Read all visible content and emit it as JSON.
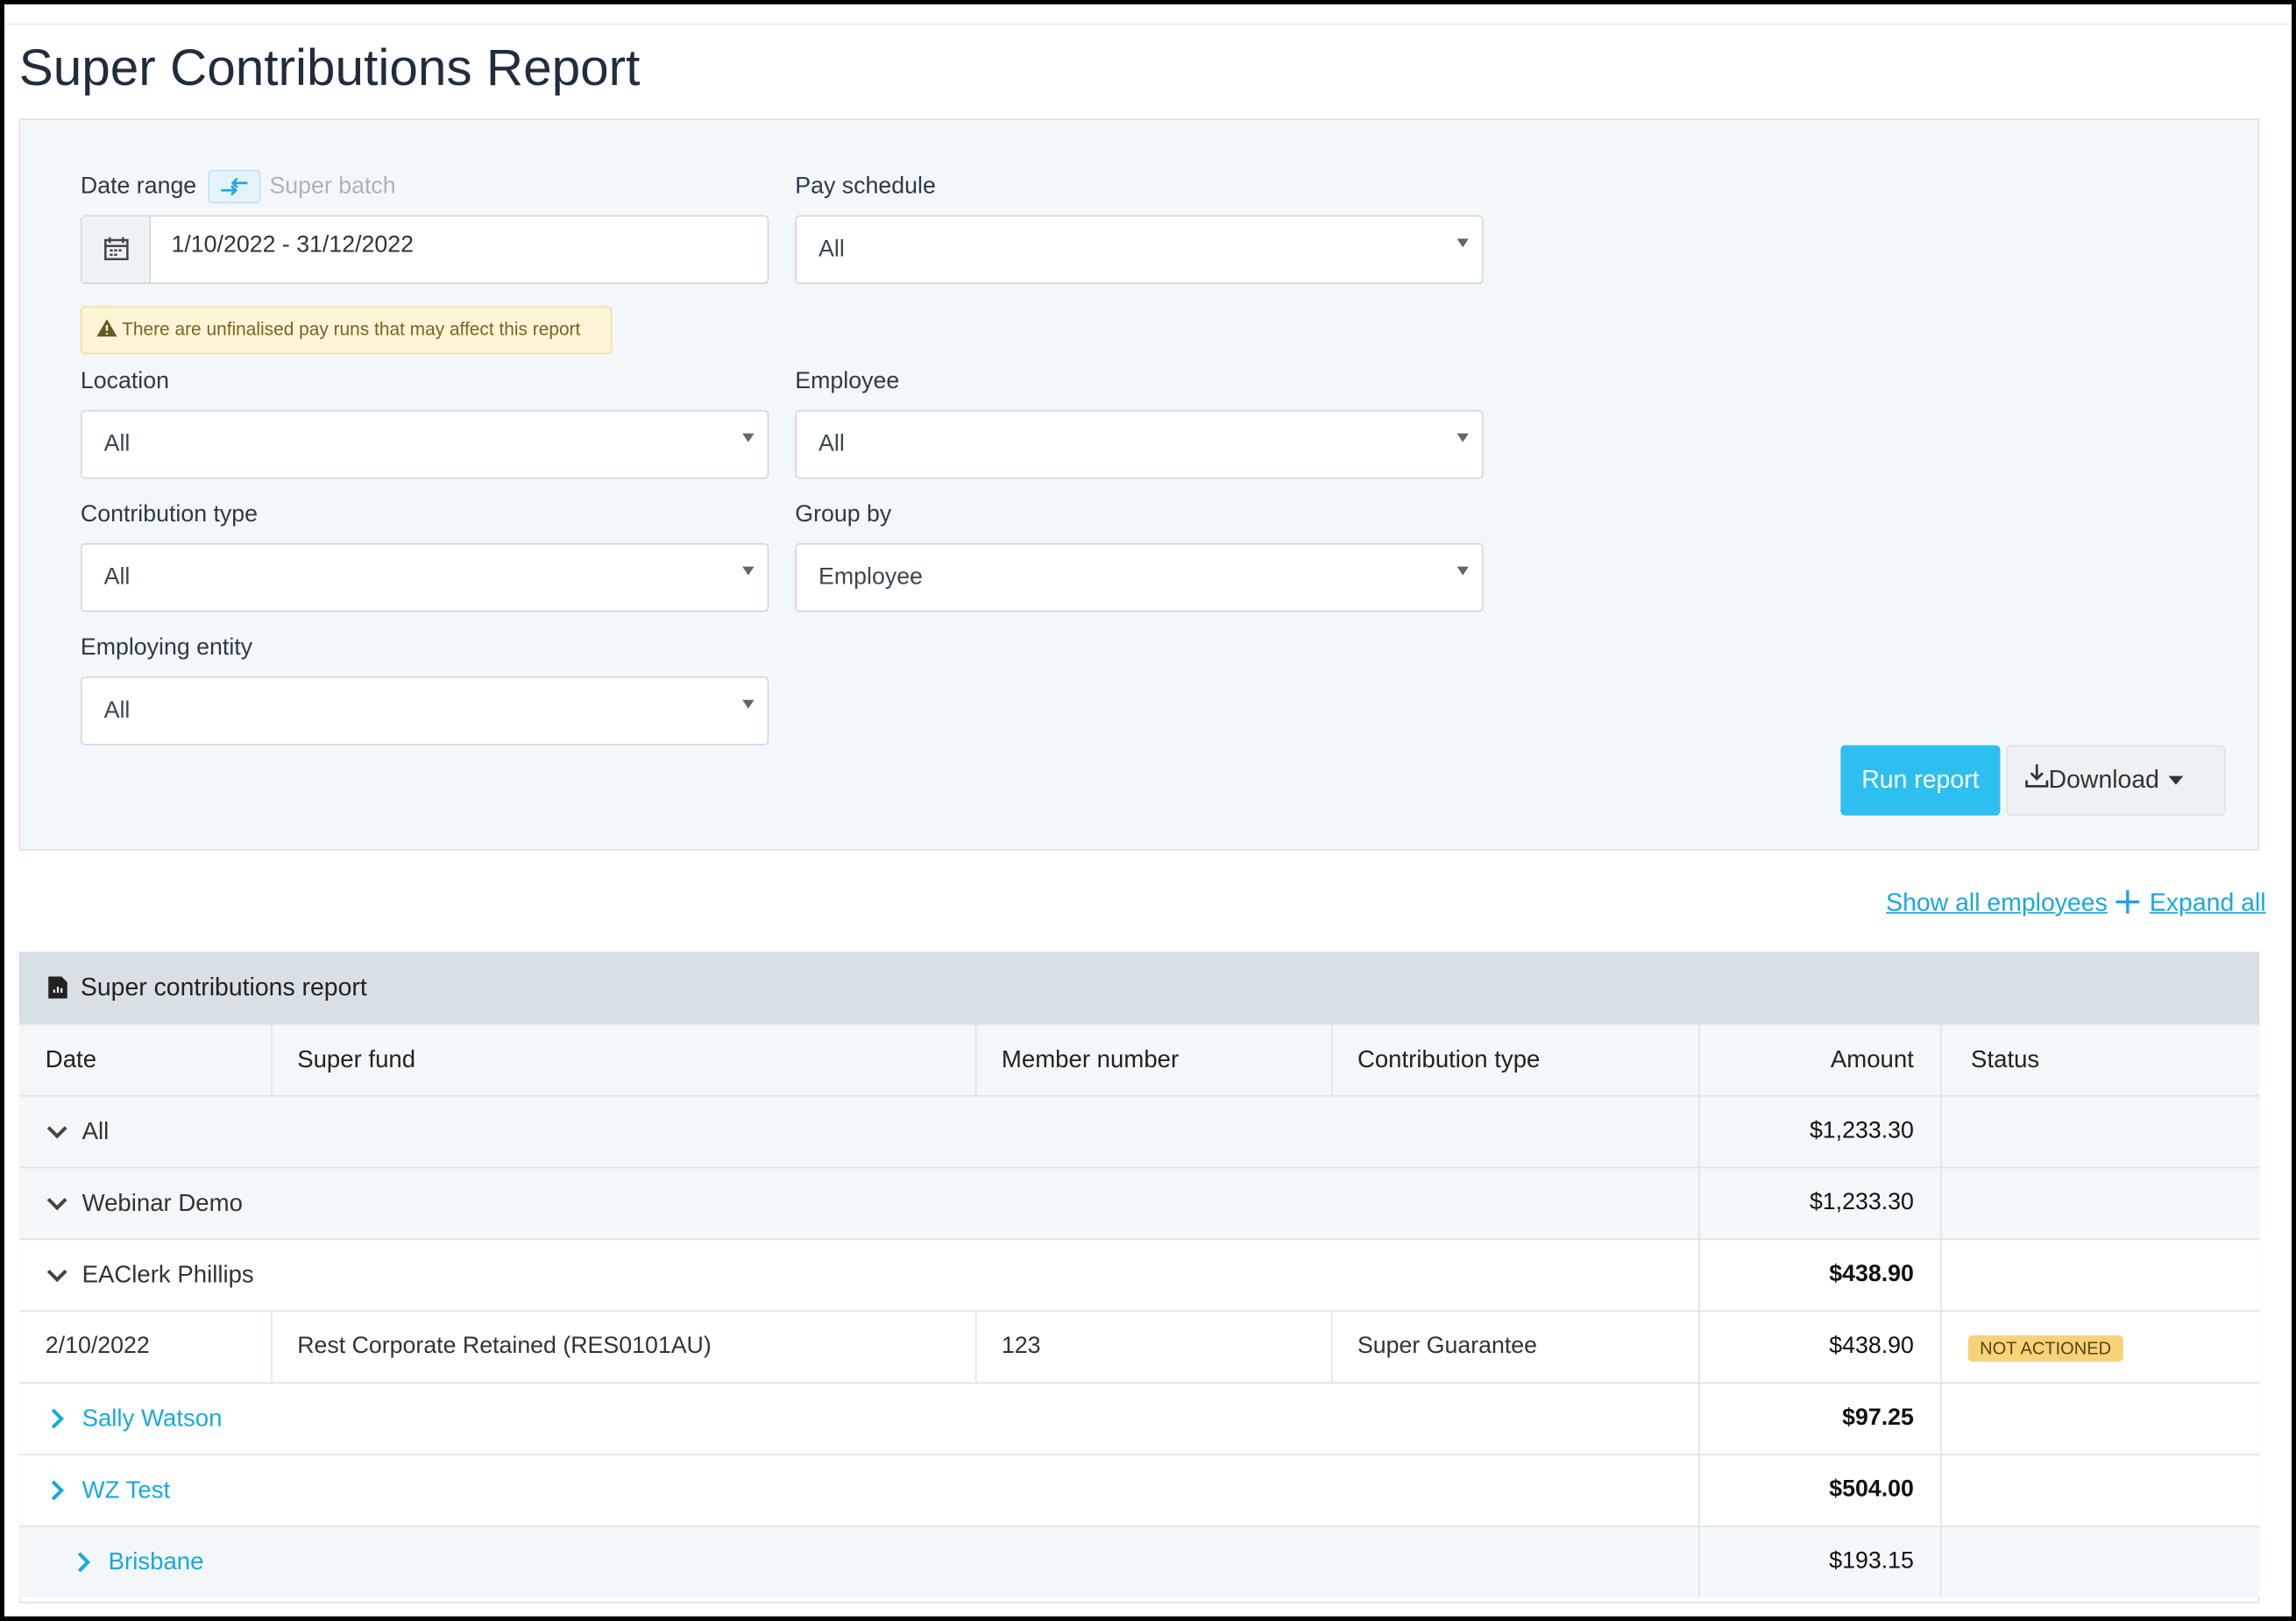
{
  "header": {
    "title": "Super Contributions Report"
  },
  "filters": {
    "date_range": {
      "label": "Date range",
      "toggle": "Super batch",
      "value": "1/10/2022 - 31/12/2022",
      "warning": "There are unfinalised pay runs that may affect this report"
    },
    "pay_schedule": {
      "label": "Pay schedule",
      "value": "All"
    },
    "location": {
      "label": "Location",
      "value": "All"
    },
    "employee": {
      "label": "Employee",
      "value": "All"
    },
    "contribution_type": {
      "label": "Contribution type",
      "value": "All"
    },
    "group_by": {
      "label": "Group by",
      "value": "Employee"
    },
    "employing_entity": {
      "label": "Employing entity",
      "value": "All"
    }
  },
  "actions": {
    "run": "Run report",
    "download": "Download"
  },
  "links": {
    "show_all": "Show all employees",
    "expand_all": "Expand all"
  },
  "table": {
    "title": "Super contributions report",
    "columns": [
      "Date",
      "Super fund",
      "Member number",
      "Contribution type",
      "Amount",
      "Status"
    ],
    "rows": [
      {
        "label": "All",
        "amount": "$1,233.30"
      },
      {
        "label": "Webinar Demo",
        "amount": "$1,233.30"
      },
      {
        "label": "EAClerk Phillips",
        "amount": "$438.90"
      },
      {
        "date": "2/10/2022",
        "fund": "Rest Corporate Retained (RES0101AU)",
        "member": "123",
        "type": "Super Guarantee",
        "amount": "$438.90",
        "status": "NOT ACTIONED"
      },
      {
        "label": "Sally Watson",
        "amount": "$97.25"
      },
      {
        "label": "WZ Test",
        "amount": "$504.00"
      },
      {
        "label": "Brisbane",
        "amount": "$193.15"
      }
    ]
  }
}
